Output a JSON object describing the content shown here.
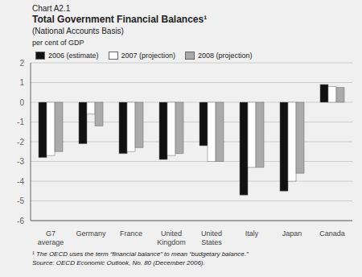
{
  "chart_data": {
    "type": "bar",
    "title": "Total Government Financial Balances¹",
    "subtitle": "(National Accounts Basis)",
    "annotations": [
      "Chart A2.1",
      "¹ The OECD uses the term “financial balance” to mean “budgetary balance.”",
      "Source: OECD Economic Outlook, No. 80 (December 2006)."
    ],
    "ylabel": "per cent of GDP",
    "categories": [
      "G7\naverage",
      "Germany",
      "France",
      "United\nKingdom",
      "United\nStates",
      "Italy",
      "Japan",
      "Canada"
    ],
    "series": [
      {
        "name": "2006 (estimate)",
        "color": "#111111",
        "values": [
          -2.8,
          -2.1,
          -2.6,
          -2.9,
          -2.2,
          -4.7,
          -4.5,
          0.9
        ]
      },
      {
        "name": "2007 (projection)",
        "color": "#ffffff",
        "values": [
          -2.7,
          -0.6,
          -2.5,
          -2.7,
          -3.0,
          -3.3,
          -4.0,
          0.8
        ]
      },
      {
        "name": "2008 (projection)",
        "color": "#aaaaaa",
        "values": [
          -2.5,
          -1.2,
          -2.3,
          -2.6,
          -3.0,
          -3.3,
          -3.6,
          0.75
        ]
      }
    ],
    "ylim": [
      -6,
      2
    ],
    "yticks": [
      -6,
      -5,
      -4,
      -3,
      -2,
      -1,
      0,
      1,
      2
    ],
    "grid": true,
    "legend": "upper left"
  }
}
